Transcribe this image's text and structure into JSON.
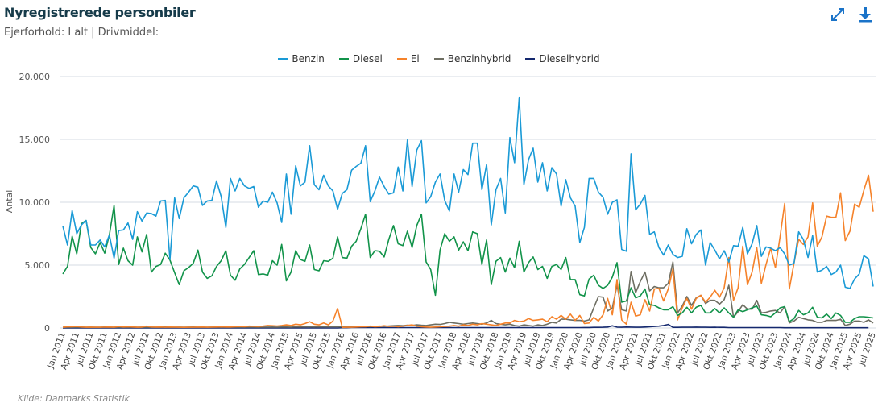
{
  "header": {
    "title": "Nyregistrerede personbiler",
    "subtitle": "Ejerforhold: I alt | Drivmiddel:",
    "icons": [
      "expand-icon",
      "download-icon"
    ],
    "accent": "#1a73c8"
  },
  "footer": {
    "source": "Kilde: Danmarks Statistik"
  },
  "chart_data": {
    "type": "line",
    "title": "Nyregistrerede personbiler",
    "ylabel": "Antal",
    "xlabel": "",
    "ylim": [
      0,
      20000
    ],
    "y_ticks": [
      0,
      5000,
      10000,
      15000,
      20000
    ],
    "y_tick_labels": [
      "0",
      "5.000",
      "10.000",
      "15.000",
      "20.000"
    ],
    "grid": true,
    "legend_position": "top",
    "x_start": "Jan 2011",
    "x_end": "Jul 2025",
    "x_frequency": "monthly",
    "x_tick_labels": [
      "Jan 2011",
      "Apr 2011",
      "Jul 2011",
      "Okt 2011",
      "Jan 2012",
      "Apr 2012",
      "Jul 2012",
      "Okt 2012",
      "Jan 2013",
      "Apr 2013",
      "Jul 2013",
      "Okt 2013",
      "Jan 2014",
      "Apr 2014",
      "Jul 2014",
      "Okt 2014",
      "Jan 2015",
      "Apr 2015",
      "Jul 2015",
      "Okt 2015",
      "Jan 2016",
      "Apr 2016",
      "Jul 2016",
      "Okt 2016",
      "Jan 2017",
      "Apr 2017",
      "Jul 2017",
      "Okt 2017",
      "Jan 2018",
      "Apr 2018",
      "Jul 2018",
      "Okt 2018",
      "Jan 2019",
      "Apr 2019",
      "Jul 2019",
      "Okt 2019",
      "Jan 2020",
      "Apr 2020",
      "Jul 2020",
      "Okt 2020",
      "Jan 2021",
      "Apr 2021",
      "Jul 2021",
      "Okt 2021",
      "Jan 2022",
      "Apr 2022",
      "Jul 2022",
      "Okt 2022",
      "Jan 2023",
      "Apr 2023",
      "Jul 2023",
      "Okt 2023",
      "Jan 2024",
      "Apr 2024",
      "Jul 2024",
      "Okt 2024",
      "Jan 2025",
      "Apr 2025",
      "Jul 2025"
    ],
    "series": [
      {
        "name": "Benzin",
        "color": "#1a9ad6",
        "values": [
          8100,
          6600,
          9350,
          7500,
          8200,
          8550,
          6600,
          6600,
          7000,
          6450,
          7400,
          5550,
          7750,
          7800,
          8350,
          7050,
          9250,
          8500,
          9150,
          9100,
          8900,
          10100,
          10150,
          5450,
          10350,
          8700,
          10350,
          10800,
          11300,
          11200,
          9750,
          10100,
          10150,
          11700,
          10450,
          8000,
          11900,
          10900,
          11900,
          11300,
          11100,
          11250,
          9600,
          10100,
          10000,
          10800,
          9950,
          8400,
          12250,
          9050,
          12900,
          11300,
          11600,
          14500,
          11400,
          11000,
          12150,
          11300,
          10900,
          9450,
          10700,
          11000,
          12550,
          12850,
          13100,
          14500,
          10050,
          10900,
          12000,
          11250,
          10650,
          10750,
          12800,
          10900,
          14950,
          11250,
          14150,
          14900,
          9950,
          10450,
          11600,
          12250,
          10150,
          9300,
          12250,
          10800,
          12600,
          12200,
          14700,
          14700,
          11000,
          13000,
          8200,
          11000,
          11900,
          9150,
          15150,
          13150,
          18350,
          11400,
          13400,
          14300,
          11600,
          13150,
          10900,
          12750,
          12250,
          9700,
          11800,
          10350,
          9700,
          6800,
          8000,
          11900,
          11900,
          10800,
          10400,
          9050,
          10000,
          10200,
          6250,
          6100,
          13850,
          9400,
          9850,
          10550,
          7450,
          7650,
          6400,
          5800,
          6600,
          5850,
          5600,
          5700,
          7900,
          6700,
          7450,
          7800,
          5000,
          6800,
          6200,
          5500,
          6150,
          5250,
          6550,
          6500,
          8000,
          5900,
          6700,
          8150,
          5700,
          6450,
          6350,
          6150,
          6400,
          5900,
          5000,
          5150,
          7650,
          7050,
          5600,
          7350,
          4450,
          4600,
          4900,
          4250,
          4450,
          5000,
          3250,
          3150,
          3900,
          4300,
          5750,
          5500,
          3300
        ]
      },
      {
        "name": "Diesel",
        "color": "#12934a",
        "values": [
          4300,
          4900,
          7300,
          5900,
          8300,
          8550,
          6400,
          5900,
          6800,
          5950,
          7400,
          9750,
          5050,
          6350,
          5350,
          5000,
          7250,
          6050,
          7450,
          4450,
          4900,
          5050,
          5950,
          5400,
          4400,
          3450,
          4550,
          4800,
          5150,
          6200,
          4450,
          3950,
          4150,
          4900,
          5350,
          6150,
          4200,
          3800,
          4700,
          5050,
          5600,
          6150,
          4250,
          4300,
          4200,
          5350,
          5000,
          6650,
          3750,
          4450,
          6150,
          5450,
          5300,
          6600,
          4650,
          4550,
          5350,
          5300,
          5550,
          7250,
          5600,
          5550,
          6500,
          6900,
          7900,
          9050,
          5600,
          6150,
          6100,
          5650,
          7050,
          8150,
          6700,
          6550,
          7700,
          6400,
          8150,
          9050,
          5250,
          4650,
          2600,
          6200,
          7500,
          6900,
          7250,
          6200,
          6850,
          6150,
          7650,
          7500,
          5050,
          7000,
          3450,
          5300,
          5600,
          4450,
          5550,
          4800,
          6900,
          4450,
          5200,
          5650,
          4650,
          4900,
          3950,
          4900,
          5050,
          4650,
          5600,
          3850,
          3850,
          2650,
          2550,
          3900,
          4200,
          3400,
          3150,
          3400,
          4050,
          5200,
          2050,
          2150,
          3200,
          2400,
          2550,
          3100,
          1850,
          1800,
          1600,
          1450,
          1450,
          1700,
          1000,
          1200,
          1650,
          1200,
          1650,
          1800,
          1200,
          1200,
          1550,
          1200,
          1600,
          1200,
          850,
          1450,
          1300,
          1450,
          1600,
          1750,
          1050,
          1000,
          900,
          1200,
          1600,
          1700,
          500,
          750,
          1400,
          1050,
          1200,
          1650,
          850,
          800,
          1100,
          750,
          1200,
          1000,
          450,
          450,
          750,
          900,
          900,
          850,
          800
        ]
      },
      {
        "name": "El",
        "color": "#f5822a",
        "values": [
          50,
          100,
          100,
          120,
          80,
          60,
          70,
          60,
          60,
          70,
          80,
          60,
          120,
          80,
          100,
          80,
          60,
          70,
          150,
          80,
          70,
          80,
          60,
          80,
          70,
          60,
          50,
          60,
          60,
          70,
          80,
          60,
          70,
          80,
          90,
          80,
          80,
          100,
          120,
          100,
          150,
          130,
          120,
          150,
          200,
          180,
          160,
          200,
          250,
          200,
          300,
          250,
          350,
          500,
          300,
          250,
          400,
          250,
          550,
          1550,
          50,
          60,
          60,
          80,
          100,
          100,
          150,
          100,
          120,
          180,
          120,
          150,
          100,
          150,
          200,
          250,
          150,
          100,
          80,
          60,
          80,
          100,
          120,
          150,
          200,
          150,
          250,
          200,
          300,
          250,
          350,
          300,
          250,
          200,
          300,
          400,
          400,
          600,
          500,
          550,
          750,
          600,
          650,
          700,
          500,
          900,
          700,
          1000,
          700,
          1100,
          600,
          1000,
          350,
          400,
          850,
          550,
          1050,
          2350,
          1050,
          3850,
          650,
          300,
          2050,
          950,
          1050,
          2250,
          1350,
          3100,
          3150,
          2150,
          3100,
          4700,
          650,
          1600,
          2350,
          1500,
          2350,
          2600,
          2050,
          2450,
          3000,
          2450,
          3200,
          5600,
          2200,
          3200,
          6500,
          3450,
          4450,
          6400,
          3550,
          5050,
          6350,
          4800,
          7250,
          9900,
          3100,
          5150,
          7050,
          6650,
          7250,
          9950,
          6500,
          7250,
          8900,
          8800,
          8800,
          10750,
          6950,
          7700,
          9850,
          9600,
          10950,
          12150,
          9250
        ]
      },
      {
        "name": "Benzinhybrid",
        "color": "#6e6e62",
        "values": [
          60,
          60,
          70,
          60,
          80,
          60,
          70,
          60,
          60,
          80,
          70,
          60,
          60,
          70,
          60,
          80,
          60,
          70,
          60,
          70,
          60,
          70,
          80,
          60,
          60,
          70,
          60,
          70,
          80,
          60,
          70,
          60,
          70,
          80,
          60,
          70,
          80,
          70,
          60,
          70,
          80,
          70,
          60,
          80,
          70,
          80,
          70,
          80,
          80,
          70,
          90,
          80,
          100,
          90,
          80,
          100,
          90,
          100,
          110,
          100,
          90,
          100,
          110,
          120,
          100,
          120,
          110,
          130,
          150,
          130,
          160,
          180,
          200,
          180,
          220,
          200,
          250,
          220,
          200,
          250,
          300,
          280,
          350,
          450,
          400,
          350,
          300,
          350,
          400,
          350,
          300,
          400,
          600,
          350,
          300,
          250,
          300,
          200,
          150,
          250,
          200,
          150,
          250,
          200,
          300,
          450,
          400,
          700,
          700,
          650,
          600,
          600,
          550,
          650,
          1600,
          2500,
          2450,
          1350,
          1600,
          3400,
          1450,
          1350,
          4500,
          2800,
          3700,
          4450,
          2950,
          3300,
          3200,
          3200,
          3550,
          5250,
          1200,
          1750,
          2500,
          1800,
          2400,
          2600,
          1950,
          2200,
          2200,
          1900,
          2250,
          3400,
          850,
          1300,
          1850,
          1500,
          1500,
          2200,
          1200,
          1250,
          1350,
          1400,
          1200,
          1700,
          400,
          550,
          850,
          750,
          650,
          600,
          450,
          450,
          600,
          600,
          600,
          700,
          200,
          300,
          550,
          550,
          450,
          650,
          400
        ]
      },
      {
        "name": "Dieselhybrid",
        "color": "#14286e",
        "values": [
          0,
          0,
          0,
          0,
          0,
          0,
          0,
          0,
          0,
          0,
          0,
          0,
          0,
          0,
          0,
          0,
          0,
          0,
          0,
          0,
          0,
          0,
          0,
          0,
          0,
          0,
          0,
          0,
          0,
          0,
          0,
          0,
          0,
          0,
          0,
          0,
          0,
          0,
          0,
          0,
          0,
          0,
          0,
          0,
          0,
          0,
          0,
          0,
          0,
          0,
          0,
          0,
          0,
          0,
          0,
          0,
          0,
          0,
          0,
          0,
          20,
          20,
          30,
          30,
          30,
          30,
          30,
          30,
          30,
          30,
          30,
          30,
          30,
          30,
          30,
          30,
          30,
          30,
          30,
          30,
          30,
          30,
          30,
          30,
          30,
          30,
          30,
          30,
          30,
          30,
          30,
          30,
          30,
          30,
          30,
          30,
          30,
          30,
          30,
          30,
          30,
          30,
          30,
          30,
          30,
          30,
          30,
          30,
          30,
          30,
          30,
          30,
          40,
          40,
          50,
          50,
          60,
          80,
          170,
          70,
          60,
          80,
          70,
          60,
          60,
          80,
          100,
          120,
          150,
          200,
          280,
          50,
          50,
          60,
          60,
          60,
          70,
          60,
          60,
          50,
          60,
          50,
          50,
          30,
          30,
          30,
          30,
          30,
          30,
          30,
          30,
          30,
          30,
          30,
          30,
          20,
          20,
          20,
          20,
          20,
          20,
          20,
          20,
          20,
          20,
          20,
          20,
          20,
          20,
          20,
          20,
          20,
          20,
          20
        ]
      }
    ]
  }
}
